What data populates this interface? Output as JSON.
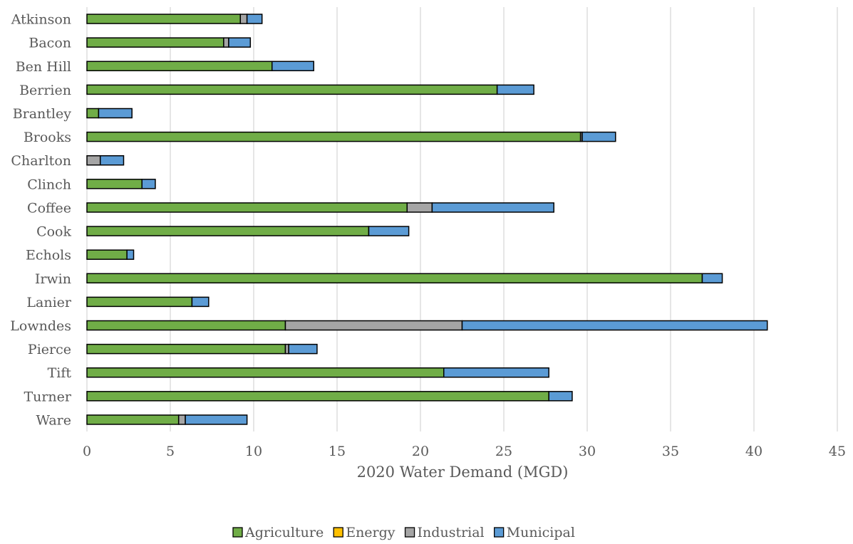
{
  "chart_data": {
    "type": "bar",
    "orientation": "horizontal",
    "stacked": true,
    "title": "",
    "xlabel": "2020 Water Demand (MGD)",
    "ylabel": "",
    "xlim": [
      0,
      45
    ],
    "x_ticks": [
      0,
      5,
      10,
      15,
      20,
      25,
      30,
      35,
      40,
      45
    ],
    "grid": "vertical",
    "legend_position": "bottom",
    "categories": [
      "Atkinson",
      "Bacon",
      "Ben Hill",
      "Berrien",
      "Brantley",
      "Brooks",
      "Charlton",
      "Clinch",
      "Coffee",
      "Cook",
      "Echols",
      "Irwin",
      "Lanier",
      "Lowndes",
      "Pierce",
      "Tift",
      "Turner",
      "Ware"
    ],
    "series": [
      {
        "name": "Agriculture",
        "color": "#70ad47",
        "values": [
          9.2,
          8.2,
          11.1,
          24.6,
          0.7,
          29.6,
          0.0,
          3.3,
          19.2,
          16.9,
          2.4,
          36.9,
          6.3,
          11.9,
          11.9,
          21.4,
          27.7,
          5.5
        ]
      },
      {
        "name": "Energy",
        "color": "#ffc000",
        "values": [
          0,
          0,
          0,
          0,
          0,
          0,
          0,
          0,
          0,
          0,
          0,
          0,
          0,
          0,
          0,
          0,
          0,
          0
        ]
      },
      {
        "name": "Industrial",
        "color": "#a5a5a5",
        "values": [
          0.4,
          0.3,
          0.0,
          0.0,
          0.0,
          0.1,
          0.8,
          0.0,
          1.5,
          0.0,
          0.0,
          0.0,
          0.0,
          10.6,
          0.2,
          0.0,
          0.0,
          0.4
        ]
      },
      {
        "name": "Municipal",
        "color": "#5b9bd5",
        "values": [
          0.9,
          1.3,
          2.5,
          2.2,
          2.0,
          2.0,
          1.4,
          0.8,
          7.3,
          2.4,
          0.4,
          1.2,
          1.0,
          18.3,
          1.7,
          6.3,
          1.4,
          3.7
        ]
      }
    ]
  }
}
